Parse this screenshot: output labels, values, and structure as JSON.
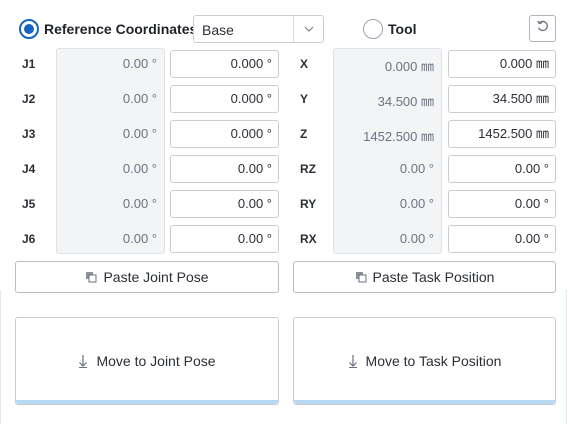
{
  "header": {
    "reference_coordinates_label": "Reference Coordinates",
    "reference_selected": true,
    "base_select_value": "Base",
    "tool_label": "Tool",
    "tool_selected": false
  },
  "joints": [
    {
      "label": "J1",
      "current": "0.00 °",
      "target": "0.000 °"
    },
    {
      "label": "J2",
      "current": "0.00 °",
      "target": "0.000 °"
    },
    {
      "label": "J3",
      "current": "0.00 °",
      "target": "0.000 °"
    },
    {
      "label": "J4",
      "current": "0.00 °",
      "target": "0.00 °"
    },
    {
      "label": "J5",
      "current": "0.00 °",
      "target": "0.00 °"
    },
    {
      "label": "J6",
      "current": "0.00 °",
      "target": "0.00 °"
    }
  ],
  "task": [
    {
      "label": "X",
      "current": "0.000 ㎜",
      "target": "0.000 ㎜"
    },
    {
      "label": "Y",
      "current": "34.500 ㎜",
      "target": "34.500 ㎜"
    },
    {
      "label": "Z",
      "current": "1452.500 ㎜",
      "target": "1452.500 ㎜"
    },
    {
      "label": "RZ",
      "current": "0.00 °",
      "target": "0.00 °"
    },
    {
      "label": "RY",
      "current": "0.00 °",
      "target": "0.00 °"
    },
    {
      "label": "RX",
      "current": "0.00 °",
      "target": "0.00 °"
    }
  ],
  "buttons": {
    "paste_joint_pose": "Paste Joint Pose",
    "paste_task_position": "Paste Task Position",
    "move_to_joint_pose": "Move to Joint Pose",
    "move_to_task_position": "Move to Task Position"
  },
  "icons": {
    "radio": "radio-button-icon",
    "select_arrow": "chevron-down-icon",
    "reset": "refresh-icon",
    "paste": "copy-icon",
    "move": "arrow-down-icon"
  },
  "colors": {
    "accent": "#1565c0",
    "move_bar": "#b9d8f2"
  }
}
